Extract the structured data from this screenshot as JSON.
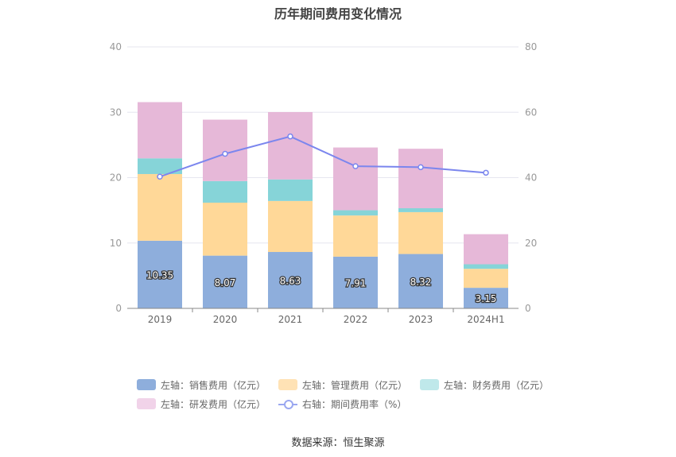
{
  "title": "历年期间费用变化情况",
  "source_label": "数据来源：恒生聚源",
  "colors": {
    "sales": "#8eaedc",
    "mgmt": "#ffd898",
    "finance": "#86d4d8",
    "rd": "#e6b8d8",
    "rate": "#7b86ee",
    "grid": "#e6e6ef",
    "axis": "#999999"
  },
  "legend": [
    {
      "label": "左轴：销售费用（亿元）",
      "color": "#8eaedc",
      "kind": "bar"
    },
    {
      "label": "左轴：管理费用（亿元）",
      "color": "#ffe2b5",
      "kind": "bar"
    },
    {
      "label": "左轴：财务费用（亿元）",
      "color": "#bfe8ea",
      "kind": "bar"
    },
    {
      "label": "左轴：研发费用（亿元）",
      "color": "#f1d3e9",
      "kind": "bar"
    },
    {
      "label": "右轴：期间费用率（%）",
      "color": "#9aa7f0",
      "kind": "line"
    }
  ],
  "chart_data": {
    "type": "bar",
    "categories": [
      "2019",
      "2020",
      "2021",
      "2022",
      "2023",
      "2024H1"
    ],
    "series": [
      {
        "name": "左轴：销售费用（亿元）",
        "values": [
          10.35,
          8.07,
          8.63,
          7.91,
          8.32,
          3.15
        ],
        "stack": "left"
      },
      {
        "name": "左轴：管理费用（亿元）",
        "values": [
          10.2,
          8.1,
          7.8,
          6.3,
          6.4,
          2.9
        ],
        "stack": "left"
      },
      {
        "name": "左轴：财务费用（亿元）",
        "values": [
          2.4,
          3.3,
          3.3,
          0.8,
          0.6,
          0.7
        ],
        "stack": "left"
      },
      {
        "name": "左轴：研发费用（亿元）",
        "values": [
          8.6,
          9.4,
          10.3,
          9.6,
          9.1,
          4.6
        ],
        "stack": "left"
      },
      {
        "name": "右轴：期间费用率（%）",
        "type": "line",
        "axis": "right",
        "values": [
          40.3,
          47.3,
          52.6,
          43.5,
          43.2,
          41.5
        ]
      }
    ],
    "data_labels": [
      "10.35",
      "8.07",
      "8.63",
      "7.91",
      "8.32",
      "3.15"
    ],
    "y_left": {
      "ylim": [
        0,
        40
      ],
      "ticks": [
        "0",
        "10",
        "20",
        "30",
        "40"
      ]
    },
    "y_right": {
      "ylim": [
        0,
        80
      ],
      "ticks": [
        "0",
        "20",
        "40",
        "60",
        "80"
      ]
    },
    "grid": true,
    "legend_position": "bottom"
  }
}
